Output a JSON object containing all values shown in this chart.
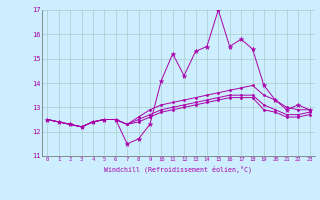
{
  "title": "",
  "xlabel": "Windchill (Refroidissement éolien,°C)",
  "ylabel": "",
  "bg_color": "#cceeff",
  "grid_color": "#aacccc",
  "line_color": "#aa00aa",
  "x": [
    0,
    1,
    2,
    3,
    4,
    5,
    6,
    7,
    8,
    9,
    10,
    11,
    12,
    13,
    14,
    15,
    16,
    17,
    18,
    19,
    20,
    21,
    22,
    23
  ],
  "series": [
    [
      12.5,
      12.4,
      12.3,
      12.2,
      12.4,
      12.5,
      12.5,
      11.5,
      11.7,
      12.3,
      14.1,
      15.2,
      14.3,
      15.3,
      15.5,
      17.0,
      15.5,
      15.8,
      15.4,
      13.9,
      13.3,
      12.9,
      13.1,
      12.9
    ],
    [
      12.5,
      12.4,
      12.3,
      12.2,
      12.4,
      12.5,
      12.5,
      12.3,
      12.6,
      12.9,
      13.1,
      13.2,
      13.3,
      13.4,
      13.5,
      13.6,
      13.7,
      13.8,
      13.9,
      13.5,
      13.3,
      13.0,
      12.9,
      12.9
    ],
    [
      12.5,
      12.4,
      12.3,
      12.2,
      12.4,
      12.5,
      12.5,
      12.3,
      12.5,
      12.7,
      12.9,
      13.0,
      13.1,
      13.2,
      13.3,
      13.4,
      13.5,
      13.5,
      13.5,
      13.1,
      12.9,
      12.7,
      12.7,
      12.8
    ],
    [
      12.5,
      12.4,
      12.3,
      12.2,
      12.4,
      12.5,
      12.5,
      12.3,
      12.4,
      12.6,
      12.8,
      12.9,
      13.0,
      13.1,
      13.2,
      13.3,
      13.4,
      13.4,
      13.4,
      12.9,
      12.8,
      12.6,
      12.6,
      12.7
    ]
  ],
  "ylim": [
    11,
    17
  ],
  "yticks": [
    11,
    12,
    13,
    14,
    15,
    16,
    17
  ],
  "xlim": [
    -0.5,
    23.5
  ],
  "xticks": [
    0,
    1,
    2,
    3,
    4,
    5,
    6,
    7,
    8,
    9,
    10,
    11,
    12,
    13,
    14,
    15,
    16,
    17,
    18,
    19,
    20,
    21,
    22,
    23
  ]
}
